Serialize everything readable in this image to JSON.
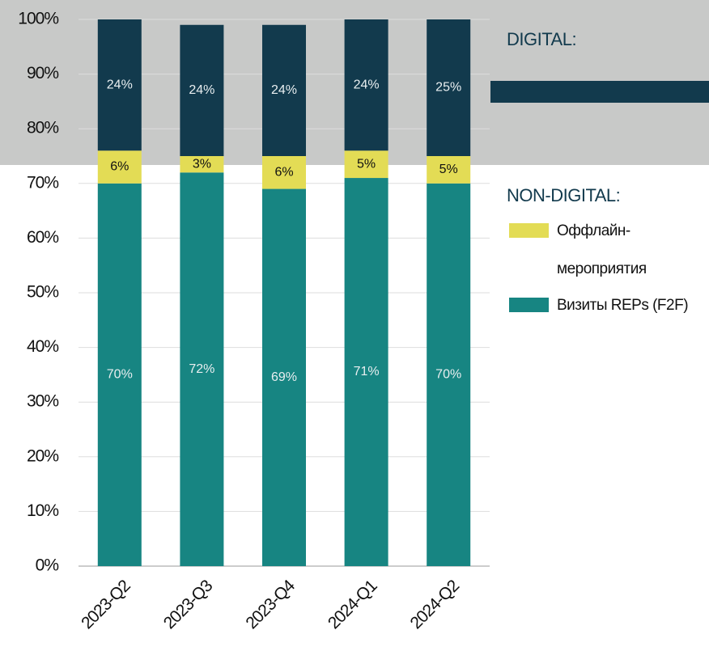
{
  "chart_data": {
    "type": "stacked_bar",
    "categories": [
      "2023-Q2",
      "2023-Q3",
      "2023-Q4",
      "2024-Q1",
      "2024-Q2"
    ],
    "series": [
      {
        "name": "Визиты REPs (F2F)",
        "color": "#178582",
        "group": 1,
        "values": [
          70,
          72,
          69,
          71,
          70
        ],
        "value_labels": [
          "70%",
          "72%",
          "69%",
          "71%",
          "70%"
        ]
      },
      {
        "name": "Оффлайн-мероприятия",
        "color": "#e3dc55",
        "group": 1,
        "values": [
          6,
          3,
          6,
          5,
          5
        ],
        "value_labels": [
          "6%",
          "3%",
          "6%",
          "5%",
          "5%"
        ]
      },
      {
        "color": "#123a4d",
        "group": 0,
        "values": [
          24,
          24,
          24,
          24,
          25
        ],
        "value_labels": [
          "24%",
          "24%",
          "24%",
          "24%",
          "25%"
        ]
      }
    ],
    "legend_groups": [
      "DIGITAL:",
      "NON-DIGITAL:"
    ],
    "ylim": [
      0,
      100
    ],
    "yticks": [
      {
        "value": 0,
        "label": "0%"
      },
      {
        "value": 10,
        "label": "10%"
      },
      {
        "value": 20,
        "label": "20%"
      },
      {
        "value": 30,
        "label": "30%"
      },
      {
        "value": 40,
        "label": "40%"
      },
      {
        "value": 50,
        "label": "50%"
      },
      {
        "value": 60,
        "label": "60%"
      },
      {
        "value": 70,
        "label": "70%"
      },
      {
        "value": 80,
        "label": "80%"
      },
      {
        "value": 90,
        "label": "90%"
      },
      {
        "value": 100,
        "label": "100%"
      }
    ],
    "grid": true
  }
}
